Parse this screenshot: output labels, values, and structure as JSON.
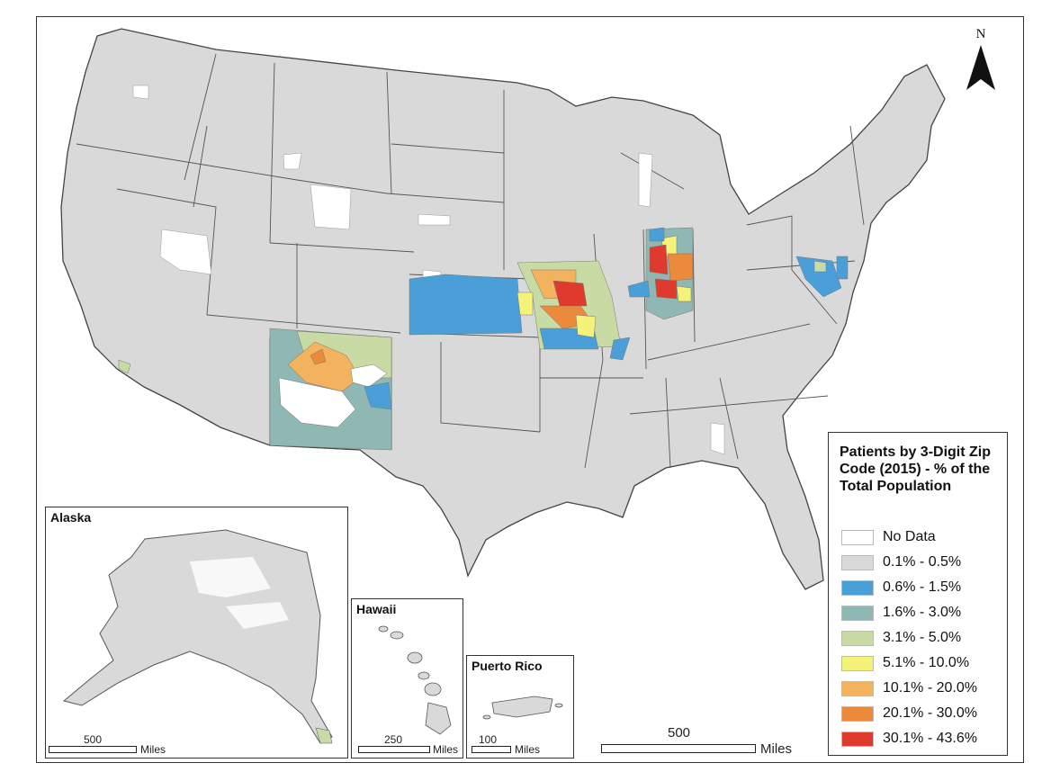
{
  "north_label": "N",
  "legend": {
    "title": "Patients by 3-Digit Zip Code (2015) - % of the Total Population",
    "items": [
      {
        "label": "No Data",
        "color": "#ffffff"
      },
      {
        "label": "0.1% - 0.5%",
        "color": "#d9d9d9"
      },
      {
        "label": "0.6% - 1.5%",
        "color": "#4a9fd8"
      },
      {
        "label": "1.6% - 3.0%",
        "color": "#8fb7b4"
      },
      {
        "label": "3.1% - 5.0%",
        "color": "#c8dba4"
      },
      {
        "label": "5.1% - 10.0%",
        "color": "#f5f27a"
      },
      {
        "label": "10.1% - 20.0%",
        "color": "#f3b35e"
      },
      {
        "label": "20.1% - 30.0%",
        "color": "#ec8a3c"
      },
      {
        "label": "30.1% - 43.6%",
        "color": "#e03a2f"
      }
    ]
  },
  "insets": {
    "alaska": {
      "title": "Alaska",
      "scale_value": "500",
      "scale_unit": "Miles"
    },
    "hawaii": {
      "title": "Hawaii",
      "scale_value": "250",
      "scale_unit": "Miles"
    },
    "puerto_rico": {
      "title": "Puerto Rico",
      "scale_value": "100",
      "scale_unit": "Miles"
    }
  },
  "main_scale": {
    "value": "500",
    "unit": "Miles"
  }
}
